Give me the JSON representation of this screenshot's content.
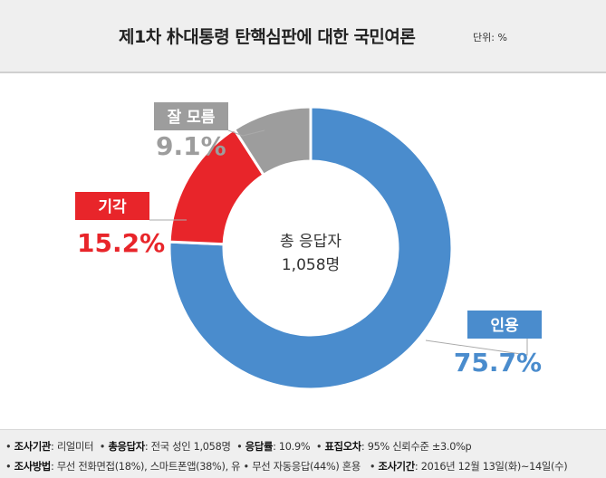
{
  "header": {
    "title": "제1차 朴대통령 탄핵심판에 대한 국민여론",
    "unit": "단위: %"
  },
  "chart_data": {
    "type": "pie",
    "title": "제1차 朴대통령 탄핵심판에 대한 국민여론",
    "unit": "%",
    "center_label": [
      "총 응답자",
      "1,058명"
    ],
    "slices": [
      {
        "label": "인용",
        "value": 75.7,
        "value_text": "75.7%",
        "color": "#4a8ccd"
      },
      {
        "label": "기각",
        "value": 15.2,
        "value_text": "15.2%",
        "color": "#e8252a"
      },
      {
        "label": "잘 모름",
        "value": 9.1,
        "value_text": "9.1%",
        "color": "#9d9d9d"
      }
    ]
  },
  "footer": {
    "line1": [
      {
        "label": "조사기관",
        "value": "리얼미터"
      },
      {
        "label": "총응답자",
        "value": "전국 성인 1,058명"
      },
      {
        "label": "응답률",
        "value": "10.9%"
      },
      {
        "label": "표집오차",
        "value": "95% 신뢰수준 ±3.0%p"
      }
    ],
    "line2": [
      {
        "label": "조사방법",
        "value": "무선 전화면접(18%), 스마트폰앱(38%), 유 • 무선 자동응답(44%) 혼용"
      },
      {
        "label": "조사기간",
        "value": "2016년 12월 13일(화)~14일(수)"
      }
    ]
  }
}
